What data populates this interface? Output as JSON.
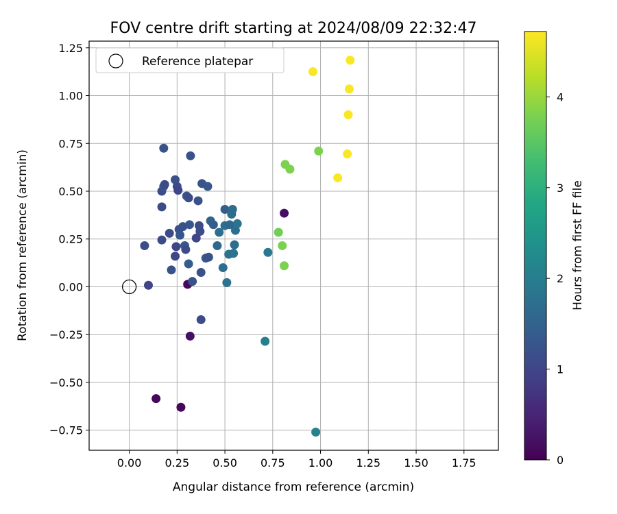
{
  "chart_data": {
    "type": "scatter",
    "title": "FOV centre drift starting at 2024/08/09 22:32:47",
    "xlabel": "Angular distance from reference (arcmin)",
    "ylabel": "Rotation from reference (arcmin)",
    "xlim": [
      -0.21,
      1.93
    ],
    "ylim": [
      -0.855,
      1.285
    ],
    "xticks": [
      0,
      0.25,
      0.5,
      0.75,
      1,
      1.25,
      1.5,
      1.75
    ],
    "xtick_labels": [
      "0.00",
      "0.25",
      "0.50",
      "0.75",
      "1.00",
      "1.25",
      "1.50",
      "1.75"
    ],
    "yticks": [
      -0.75,
      -0.5,
      -0.25,
      0,
      0.25,
      0.5,
      0.75,
      1,
      1.25
    ],
    "ytick_labels": [
      "−0.75",
      "−0.50",
      "−0.25",
      "0.00",
      "0.25",
      "0.50",
      "0.75",
      "1.00",
      "1.25"
    ],
    "grid": true,
    "colormap": "viridis",
    "colorbar": {
      "label": "Hours from first FF file",
      "min": 0,
      "max": 4.72,
      "ticks": [
        0,
        1,
        2,
        3,
        4
      ],
      "tick_labels": [
        "0",
        "1",
        "2",
        "3",
        "4"
      ]
    },
    "legend": {
      "location": "top-left",
      "label": "Reference platepar"
    },
    "reference_point": {
      "x": 0.0,
      "y": 0.0
    },
    "points": [
      {
        "x": 0.305,
        "y": 0.013,
        "c": 0.1
      },
      {
        "x": 0.318,
        "y": -0.258,
        "c": 0.2
      },
      {
        "x": 0.14,
        "y": -0.585,
        "c": 0.1
      },
      {
        "x": 0.27,
        "y": -0.63,
        "c": 0.1
      },
      {
        "x": 0.81,
        "y": 0.385,
        "c": 0.2
      },
      {
        "x": 0.1,
        "y": 0.008,
        "c": 1.0
      },
      {
        "x": 0.08,
        "y": 0.215,
        "c": 1.1
      },
      {
        "x": 0.17,
        "y": 0.245,
        "c": 1.1
      },
      {
        "x": 0.21,
        "y": 0.28,
        "c": 1.1
      },
      {
        "x": 0.22,
        "y": 0.088,
        "c": 1.2
      },
      {
        "x": 0.24,
        "y": 0.16,
        "c": 1.0
      },
      {
        "x": 0.245,
        "y": 0.21,
        "c": 1.0
      },
      {
        "x": 0.26,
        "y": 0.3,
        "c": 1.2
      },
      {
        "x": 0.265,
        "y": 0.27,
        "c": 1.3
      },
      {
        "x": 0.28,
        "y": 0.315,
        "c": 1.2
      },
      {
        "x": 0.29,
        "y": 0.215,
        "c": 1.3
      },
      {
        "x": 0.295,
        "y": 0.195,
        "c": 1.1
      },
      {
        "x": 0.31,
        "y": 0.12,
        "c": 1.4
      },
      {
        "x": 0.315,
        "y": 0.325,
        "c": 1.3
      },
      {
        "x": 0.33,
        "y": 0.028,
        "c": 1.2
      },
      {
        "x": 0.35,
        "y": 0.255,
        "c": 1.0
      },
      {
        "x": 0.365,
        "y": 0.32,
        "c": 1.1
      },
      {
        "x": 0.37,
        "y": 0.29,
        "c": 1.1
      },
      {
        "x": 0.375,
        "y": 0.075,
        "c": 1.2
      },
      {
        "x": 0.375,
        "y": -0.172,
        "c": 1.1
      },
      {
        "x": 0.4,
        "y": 0.15,
        "c": 1.3
      },
      {
        "x": 0.415,
        "y": 0.155,
        "c": 1.2
      },
      {
        "x": 0.425,
        "y": 0.345,
        "c": 1.5
      },
      {
        "x": 0.44,
        "y": 0.325,
        "c": 1.4
      },
      {
        "x": 0.18,
        "y": 0.725,
        "c": 1.2
      },
      {
        "x": 0.32,
        "y": 0.685,
        "c": 1.2
      },
      {
        "x": 0.17,
        "y": 0.5,
        "c": 1.1
      },
      {
        "x": 0.18,
        "y": 0.525,
        "c": 1.2
      },
      {
        "x": 0.185,
        "y": 0.535,
        "c": 1.1
      },
      {
        "x": 0.17,
        "y": 0.418,
        "c": 1.1
      },
      {
        "x": 0.24,
        "y": 0.56,
        "c": 1.2
      },
      {
        "x": 0.25,
        "y": 0.525,
        "c": 1.1
      },
      {
        "x": 0.255,
        "y": 0.505,
        "c": 1.0
      },
      {
        "x": 0.3,
        "y": 0.475,
        "c": 1.2
      },
      {
        "x": 0.31,
        "y": 0.465,
        "c": 1.1
      },
      {
        "x": 0.36,
        "y": 0.45,
        "c": 1.2
      },
      {
        "x": 0.38,
        "y": 0.54,
        "c": 1.2
      },
      {
        "x": 0.41,
        "y": 0.525,
        "c": 1.3
      },
      {
        "x": 0.46,
        "y": 0.215,
        "c": 1.6
      },
      {
        "x": 0.47,
        "y": 0.285,
        "c": 1.7
      },
      {
        "x": 0.49,
        "y": 0.1,
        "c": 1.7
      },
      {
        "x": 0.5,
        "y": 0.405,
        "c": 1.4
      },
      {
        "x": 0.5,
        "y": 0.32,
        "c": 1.7
      },
      {
        "x": 0.51,
        "y": 0.022,
        "c": 1.8
      },
      {
        "x": 0.52,
        "y": 0.17,
        "c": 1.8
      },
      {
        "x": 0.525,
        "y": 0.325,
        "c": 1.6
      },
      {
        "x": 0.535,
        "y": 0.38,
        "c": 1.7
      },
      {
        "x": 0.54,
        "y": 0.405,
        "c": 1.7
      },
      {
        "x": 0.545,
        "y": 0.175,
        "c": 1.8
      },
      {
        "x": 0.55,
        "y": 0.22,
        "c": 1.7
      },
      {
        "x": 0.555,
        "y": 0.295,
        "c": 1.7
      },
      {
        "x": 0.565,
        "y": 0.33,
        "c": 1.8
      },
      {
        "x": 0.725,
        "y": 0.18,
        "c": 1.9
      },
      {
        "x": 0.71,
        "y": -0.285,
        "c": 2.0
      },
      {
        "x": 0.975,
        "y": -0.76,
        "c": 2.1
      },
      {
        "x": 0.78,
        "y": 0.285,
        "c": 3.7
      },
      {
        "x": 0.8,
        "y": 0.215,
        "c": 3.8
      },
      {
        "x": 0.81,
        "y": 0.11,
        "c": 3.8
      },
      {
        "x": 0.815,
        "y": 0.64,
        "c": 3.8
      },
      {
        "x": 0.84,
        "y": 0.615,
        "c": 3.8
      },
      {
        "x": 0.99,
        "y": 0.71,
        "c": 3.8
      },
      {
        "x": 0.96,
        "y": 1.125,
        "c": 4.7
      },
      {
        "x": 1.155,
        "y": 1.185,
        "c": 4.7
      },
      {
        "x": 1.15,
        "y": 1.035,
        "c": 4.7
      },
      {
        "x": 1.145,
        "y": 0.9,
        "c": 4.7
      },
      {
        "x": 1.14,
        "y": 0.695,
        "c": 4.7
      },
      {
        "x": 1.09,
        "y": 0.57,
        "c": 4.7
      }
    ]
  }
}
